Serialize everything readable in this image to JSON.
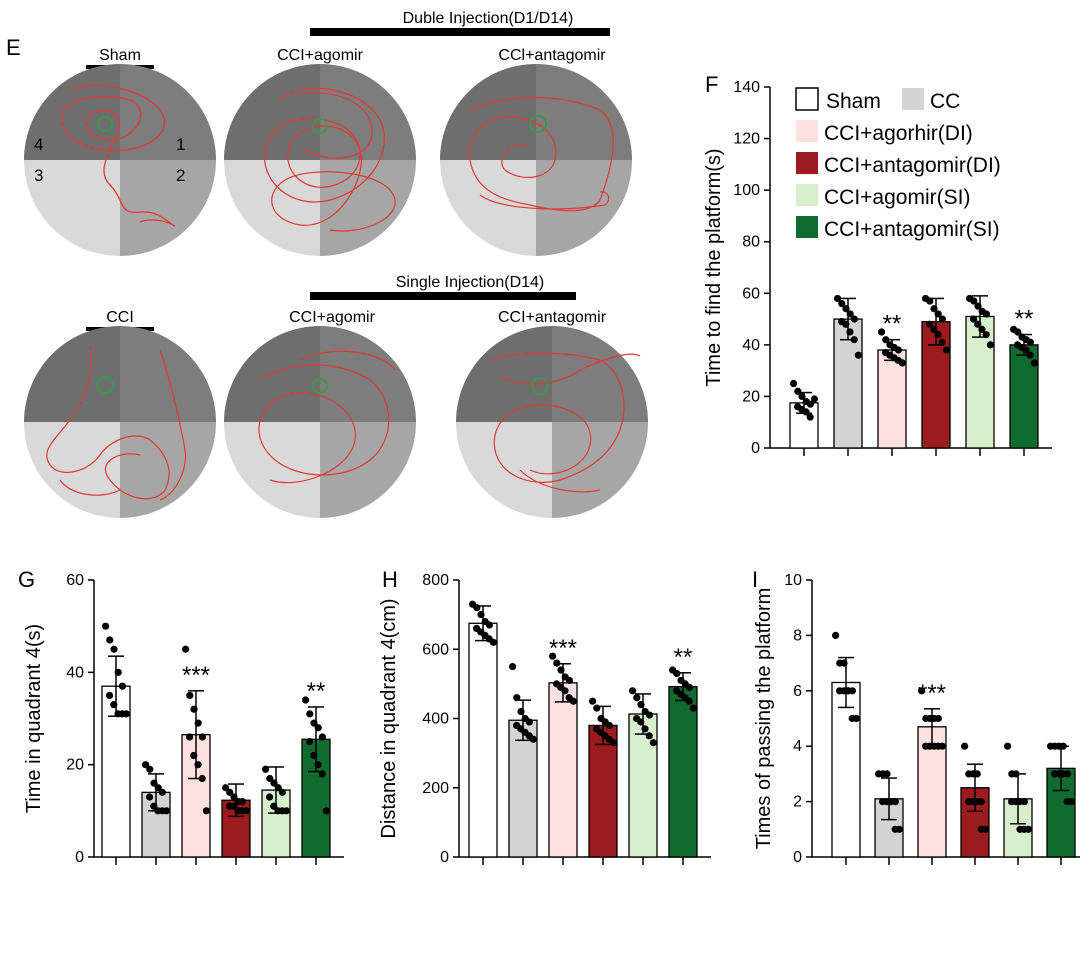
{
  "figure": {
    "panel_e": {
      "letter": "E",
      "double_injection_label": "Duble Injection(D1/D14)",
      "single_injection_label": "Single Injection(D14)",
      "quadrant_numbers": [
        "4",
        "1",
        "3",
        "2"
      ],
      "pools": [
        {
          "label": "Sham",
          "path_color": "#e23b32",
          "platform_color": "#2ea043"
        },
        {
          "label": "CCI+agomir",
          "path_color": "#e23b32",
          "platform_color": "#2ea043"
        },
        {
          "label": "CCl+antagomir",
          "path_color": "#e23b32",
          "platform_color": "#2ea043"
        },
        {
          "label": "CCI",
          "path_color": "#e23b32",
          "platform_color": "#2ea043"
        },
        {
          "label": "CCI+agomir",
          "path_color": "#e23b32",
          "platform_color": "#2ea043"
        },
        {
          "label": "CCI+antagomir",
          "path_color": "#e23b32",
          "platform_color": "#2ea043"
        }
      ]
    },
    "groups": [
      {
        "name": "Sham",
        "color": "#ffffff"
      },
      {
        "name": "CC",
        "color": "#d4d4d4"
      },
      {
        "name": "CCI+agorhir(DI)",
        "color": "#fde0e0"
      },
      {
        "name": "CCI+antagomir(DI)",
        "color": "#9b1b1f"
      },
      {
        "name": "CCI+agomir(SI)",
        "color": "#d7efcd"
      },
      {
        "name": "CCI+antagomir(SI)",
        "color": "#0f6b2f"
      }
    ]
  },
  "chart_data": [
    {
      "panel": "F",
      "type": "bar",
      "ylabel": "Time to find the platform(s)",
      "ylim": [
        0,
        140
      ],
      "yticks": [
        "0",
        "20",
        "40",
        "60",
        "80",
        "100",
        "120",
        "140"
      ],
      "means": [
        17.5,
        50,
        38,
        49,
        51,
        40
      ],
      "sd": [
        4,
        8,
        4,
        9,
        8,
        4
      ],
      "points": [
        [
          25,
          22,
          20,
          18,
          17,
          16,
          15,
          14,
          12,
          19
        ],
        [
          58,
          56,
          54,
          52,
          50,
          49,
          48,
          45,
          42,
          36
        ],
        [
          45,
          42,
          40,
          39,
          38,
          37,
          36,
          35,
          34,
          33
        ],
        [
          58,
          57,
          54,
          52,
          50,
          48,
          46,
          44,
          41,
          38
        ],
        [
          58,
          57,
          55,
          53,
          52,
          50,
          48,
          46,
          44,
          40
        ],
        [
          46,
          45,
          43,
          42,
          41,
          40,
          39,
          38,
          36,
          33
        ]
      ],
      "significance": [
        "",
        "",
        "**",
        "",
        "",
        "**"
      ]
    },
    {
      "panel": "G",
      "type": "bar",
      "ylabel": "Time in quadrant 4(s)",
      "ylim": [
        0,
        60
      ],
      "yticks": [
        "0",
        "20",
        "40",
        "60"
      ],
      "means": [
        37,
        14,
        26.5,
        12.3,
        14.5,
        25.5
      ],
      "sd": [
        6.5,
        4,
        9.5,
        3.5,
        5,
        7
      ],
      "points": [
        [
          50,
          47,
          45,
          40,
          37,
          35,
          33,
          31,
          31,
          31
        ],
        [
          20,
          19,
          16,
          15,
          14,
          13,
          11,
          10,
          10,
          10
        ],
        [
          45,
          35,
          32,
          29,
          26,
          26,
          22,
          20,
          17,
          10
        ],
        [
          15,
          14,
          13,
          12,
          12,
          11,
          11,
          10,
          10,
          10
        ],
        [
          19,
          17,
          16,
          15,
          14,
          13,
          11,
          10,
          10,
          10
        ],
        [
          34,
          31,
          29,
          28,
          26,
          25,
          22,
          20,
          18,
          10
        ]
      ],
      "significance": [
        "",
        "",
        "***",
        "",
        "",
        "**"
      ]
    },
    {
      "panel": "H",
      "type": "bar",
      "ylabel": "Distance in quadrant 4(cm)",
      "ylim": [
        0,
        800
      ],
      "yticks": [
        "0",
        "200",
        "400",
        "600",
        "800"
      ],
      "means": [
        675,
        395,
        503,
        380,
        413,
        492
      ],
      "sd": [
        50,
        58,
        55,
        55,
        58,
        40
      ],
      "points": [
        [
          730,
          720,
          700,
          680,
          670,
          660,
          650,
          640,
          630,
          620
        ],
        [
          550,
          460,
          420,
          400,
          390,
          380,
          370,
          360,
          350,
          340
        ],
        [
          580,
          560,
          540,
          520,
          510,
          500,
          490,
          480,
          460,
          450
        ],
        [
          450,
          430,
          400,
          390,
          380,
          370,
          360,
          350,
          340,
          330
        ],
        [
          480,
          460,
          440,
          420,
          410,
          400,
          390,
          370,
          350,
          330
        ],
        [
          540,
          530,
          510,
          500,
          490,
          480,
          470,
          460,
          450,
          430
        ]
      ],
      "significance": [
        "",
        "",
        "***",
        "",
        "",
        "**"
      ]
    },
    {
      "panel": "I",
      "type": "bar",
      "ylabel": "Times of passing the platform",
      "ylim": [
        0,
        10
      ],
      "yticks": [
        "0",
        "2",
        "4",
        "6",
        "8",
        "10"
      ],
      "means": [
        6.3,
        2.1,
        4.7,
        2.5,
        2.1,
        3.2
      ],
      "sd": [
        0.9,
        0.75,
        0.65,
        0.85,
        0.9,
        0.8
      ],
      "points": [
        [
          8,
          7,
          7,
          6,
          6,
          6,
          6,
          6,
          5,
          5
        ],
        [
          3,
          3,
          3,
          2,
          2,
          2,
          2,
          2,
          1,
          1
        ],
        [
          6,
          5,
          5,
          5,
          5,
          4,
          4,
          4,
          4,
          4
        ],
        [
          4,
          3,
          3,
          3,
          2,
          2,
          2,
          2,
          1,
          1
        ],
        [
          4,
          3,
          3,
          2,
          2,
          2,
          2,
          1,
          1,
          1
        ],
        [
          4,
          4,
          4,
          4,
          3,
          3,
          3,
          3,
          2,
          2
        ]
      ],
      "significance": [
        "",
        "",
        "***",
        "",
        "",
        ""
      ]
    }
  ]
}
